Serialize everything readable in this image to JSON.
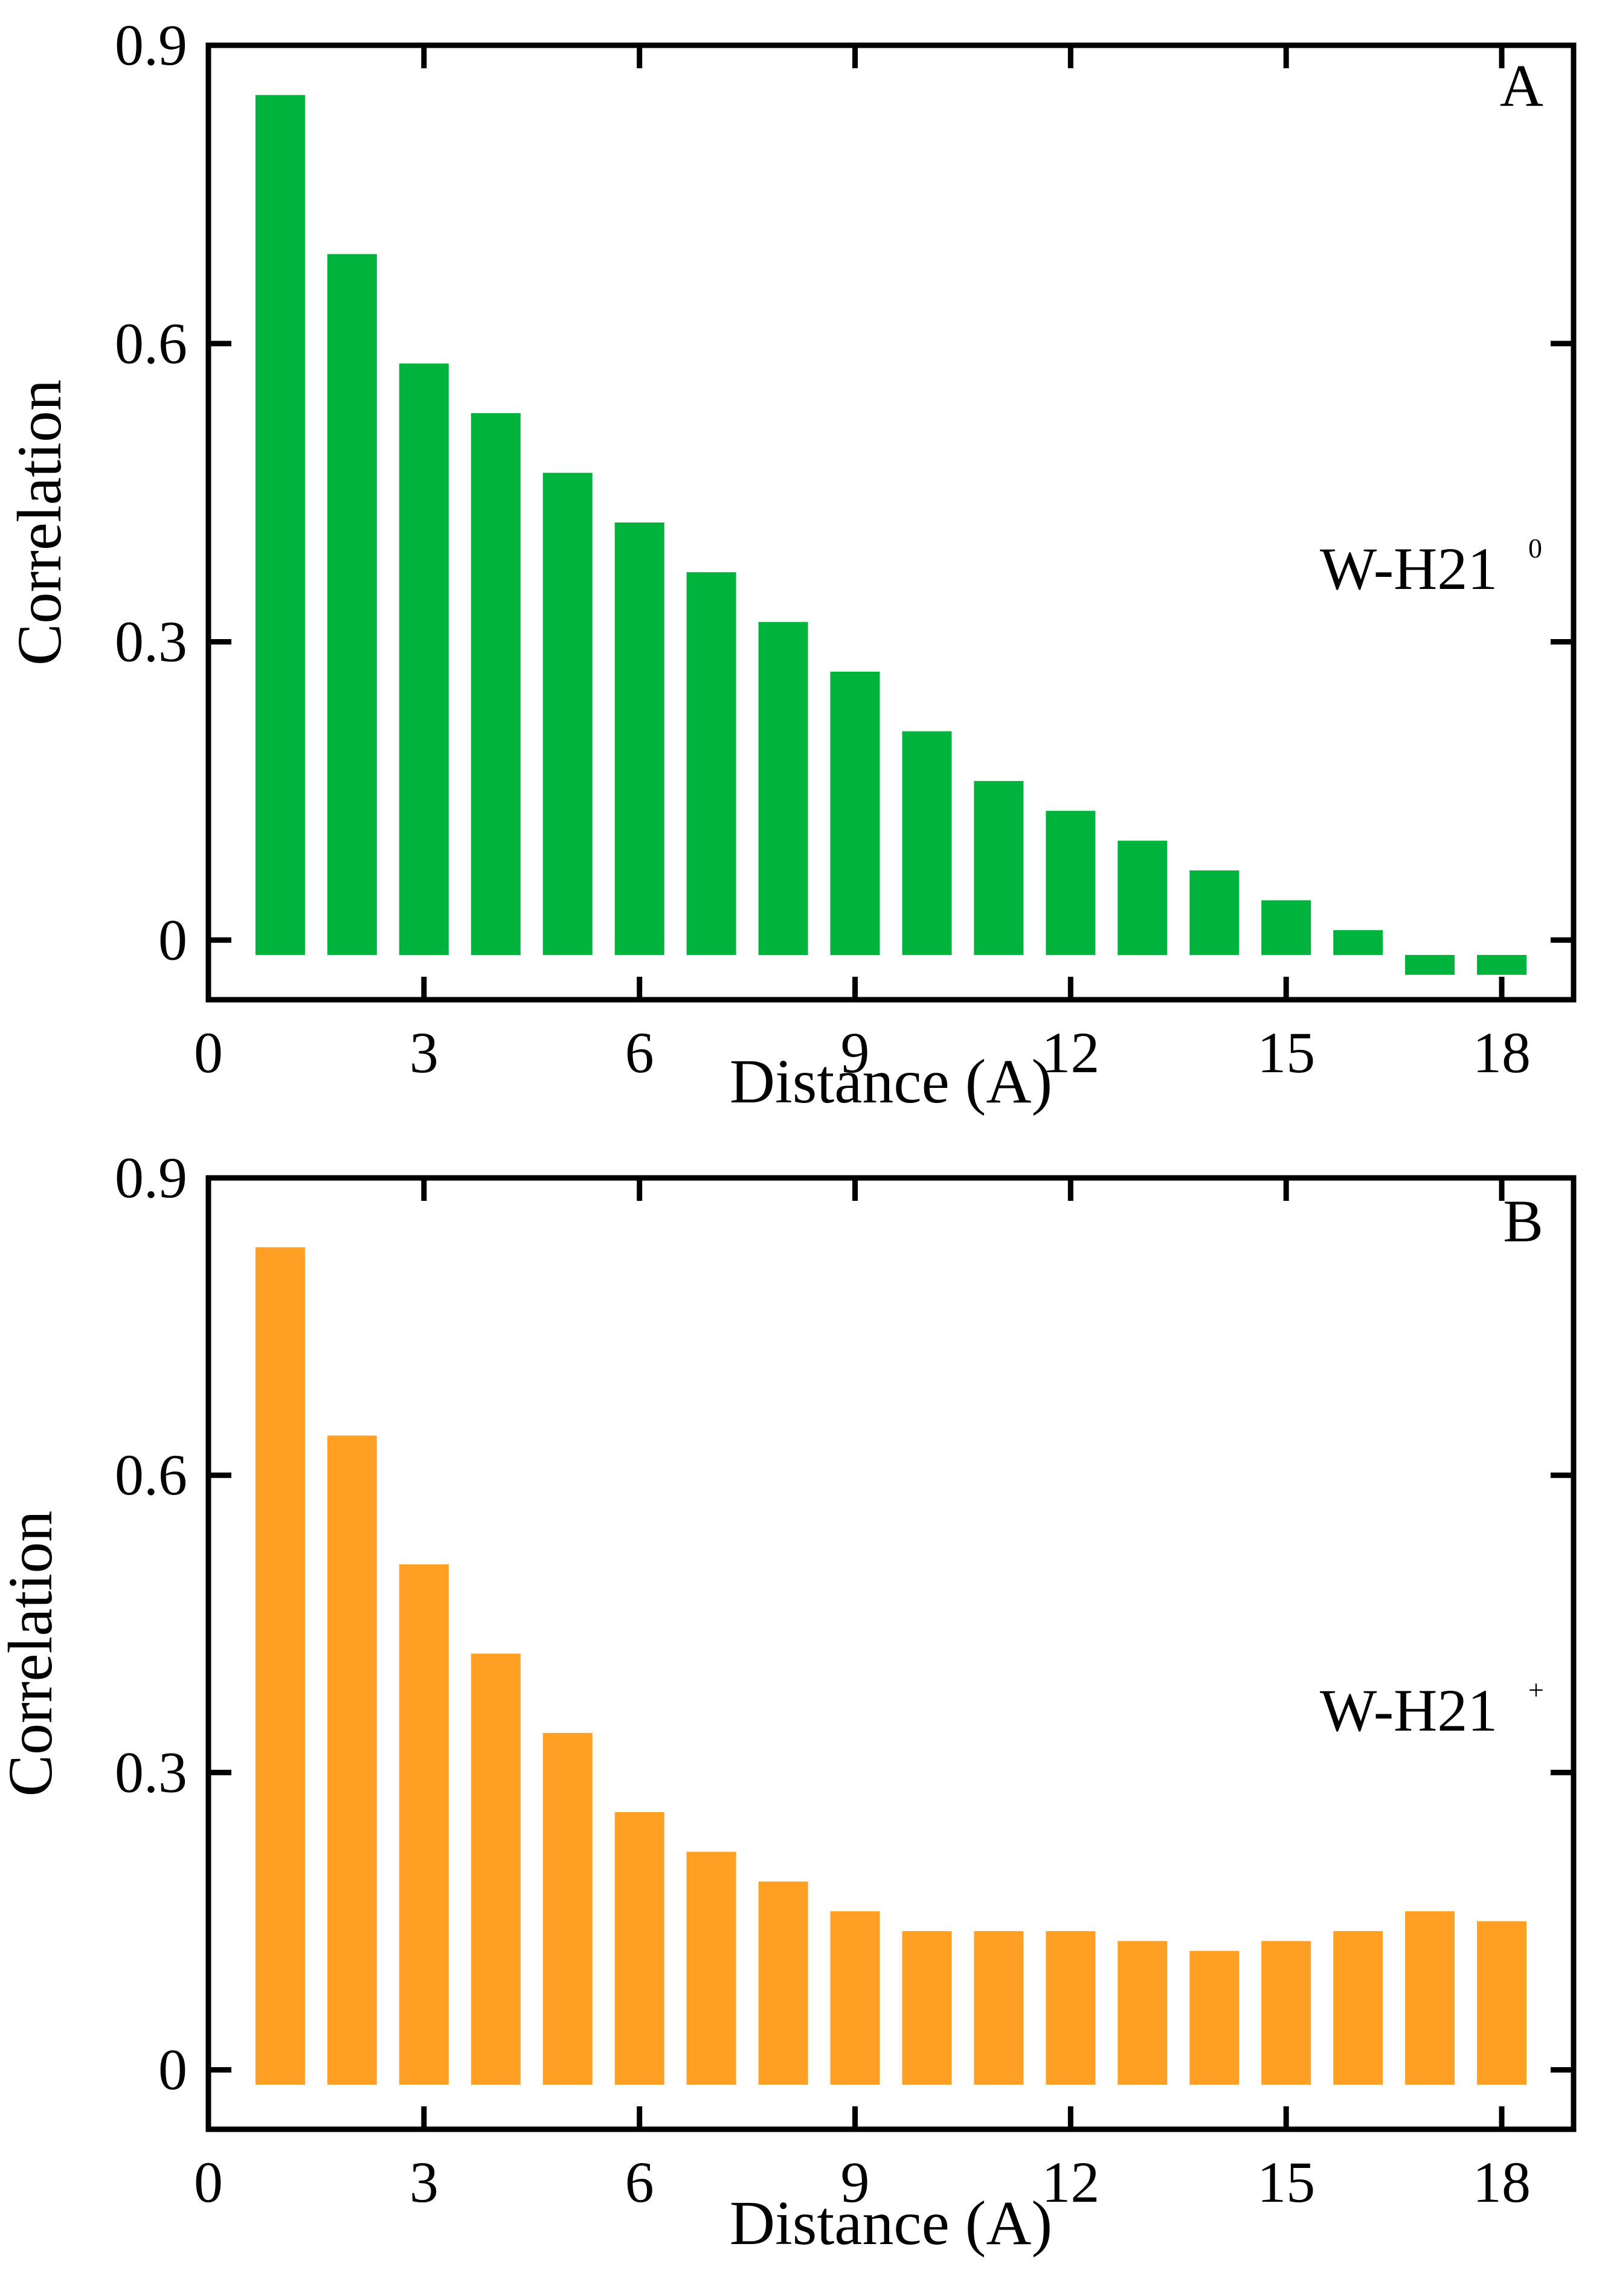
{
  "colors": {
    "axis": "#000000",
    "background": "#ffffff"
  },
  "chart_data": [
    {
      "type": "bar",
      "panel_label": "A",
      "series_label": "W-H21",
      "series_superscript": "0",
      "xlabel": "Distance (A)",
      "ylabel": "Correlation",
      "xlim": [
        0,
        19
      ],
      "ylim": [
        -0.06,
        0.9
      ],
      "xticks": [
        "0",
        "3",
        "6",
        "9",
        "12",
        "15",
        "18"
      ],
      "yticks": [
        "0",
        "0.3",
        "0.6",
        "0.9"
      ],
      "bar_base": -0.015,
      "color": "#00b33c",
      "x": [
        1,
        2,
        3,
        4,
        5,
        6,
        7,
        8,
        9,
        10,
        11,
        12,
        13,
        14,
        15,
        16,
        17,
        18
      ],
      "values": [
        0.85,
        0.69,
        0.58,
        0.53,
        0.47,
        0.42,
        0.37,
        0.32,
        0.27,
        0.21,
        0.16,
        0.13,
        0.1,
        0.07,
        0.04,
        0.01,
        -0.035,
        -0.035
      ]
    },
    {
      "type": "bar",
      "panel_label": "B",
      "series_label": "W-H21",
      "series_superscript": "+",
      "xlabel": "Distance (A)",
      "ylabel": "Correlation",
      "xlim": [
        0,
        19
      ],
      "ylim": [
        -0.06,
        0.9
      ],
      "xticks": [
        "0",
        "3",
        "6",
        "9",
        "12",
        "15",
        "18"
      ],
      "yticks": [
        "0",
        "0.3",
        "0.6",
        "0.9"
      ],
      "bar_base": -0.015,
      "color": "#ffa024",
      "x": [
        1,
        2,
        3,
        4,
        5,
        6,
        7,
        8,
        9,
        10,
        11,
        12,
        13,
        14,
        15,
        16,
        17,
        18
      ],
      "values": [
        0.83,
        0.64,
        0.51,
        0.42,
        0.34,
        0.26,
        0.22,
        0.19,
        0.16,
        0.14,
        0.14,
        0.14,
        0.13,
        0.12,
        0.13,
        0.14,
        0.16,
        0.15
      ]
    }
  ]
}
